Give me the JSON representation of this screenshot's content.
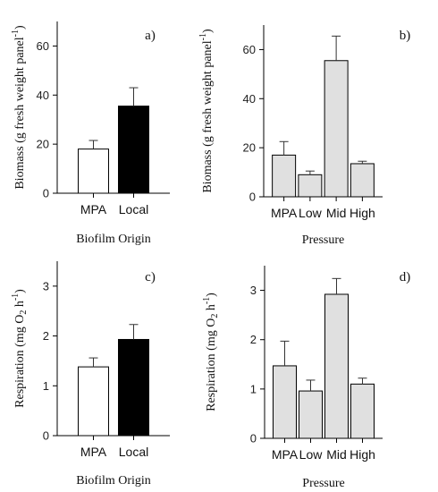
{
  "chart_data": [
    {
      "id": "a",
      "type": "bar",
      "panel_label": "a)",
      "categories": [
        "MPA",
        "Local"
      ],
      "values": [
        18,
        35.5
      ],
      "errors": [
        3.5,
        7.5
      ],
      "colors": [
        "#ffffff",
        "#000000"
      ],
      "xlabel": "Biofilm Origin",
      "ylabel": "Biomass (g fresh weight panel",
      "ylabel_sup": "-1",
      "ylabel_end": ")",
      "ylim": [
        0,
        70
      ],
      "yticks": [
        0,
        20,
        40,
        60
      ],
      "grid": false
    },
    {
      "id": "b",
      "type": "bar",
      "panel_label": "b)",
      "categories": [
        "MPA",
        "Low",
        "Mid",
        "High"
      ],
      "values": [
        17,
        9,
        55.5,
        13.5
      ],
      "errors": [
        5.5,
        1.5,
        10,
        1
      ],
      "colors": [
        "#e0e0e0",
        "#e0e0e0",
        "#e0e0e0",
        "#e0e0e0"
      ],
      "xlabel": "Pressure",
      "ylabel": "Biomass (g fresh weight panel",
      "ylabel_sup": "-1",
      "ylabel_end": ")",
      "ylim": [
        0,
        70
      ],
      "yticks": [
        0,
        20,
        40,
        60
      ],
      "grid": false
    },
    {
      "id": "c",
      "type": "bar",
      "panel_label": "c)",
      "categories": [
        "MPA",
        "Local"
      ],
      "values": [
        1.38,
        1.93
      ],
      "errors": [
        0.18,
        0.3
      ],
      "colors": [
        "#ffffff",
        "#000000"
      ],
      "xlabel": "Biofilm Origin",
      "ylabel": "Respiration (mg O",
      "ylabel_sub": "2",
      "ylabel_mid": " h",
      "ylabel_sup": "-1",
      "ylabel_end": ")",
      "ylim": [
        0,
        3.5
      ],
      "yticks": [
        0,
        1,
        2,
        3
      ],
      "grid": false
    },
    {
      "id": "d",
      "type": "bar",
      "panel_label": "d)",
      "categories": [
        "MPA",
        "Low",
        "Mid",
        "High"
      ],
      "values": [
        1.47,
        0.96,
        2.92,
        1.1
      ],
      "errors": [
        0.5,
        0.22,
        0.32,
        0.12
      ],
      "colors": [
        "#e0e0e0",
        "#e0e0e0",
        "#e0e0e0",
        "#e0e0e0"
      ],
      "xlabel": "Pressure",
      "ylabel": "Respiration (mg O",
      "ylabel_sub": "2",
      "ylabel_mid": " h",
      "ylabel_sup": "-1",
      "ylabel_end": ")",
      "ylim": [
        0,
        3.5
      ],
      "yticks": [
        0,
        1,
        2,
        3
      ],
      "grid": false
    }
  ]
}
